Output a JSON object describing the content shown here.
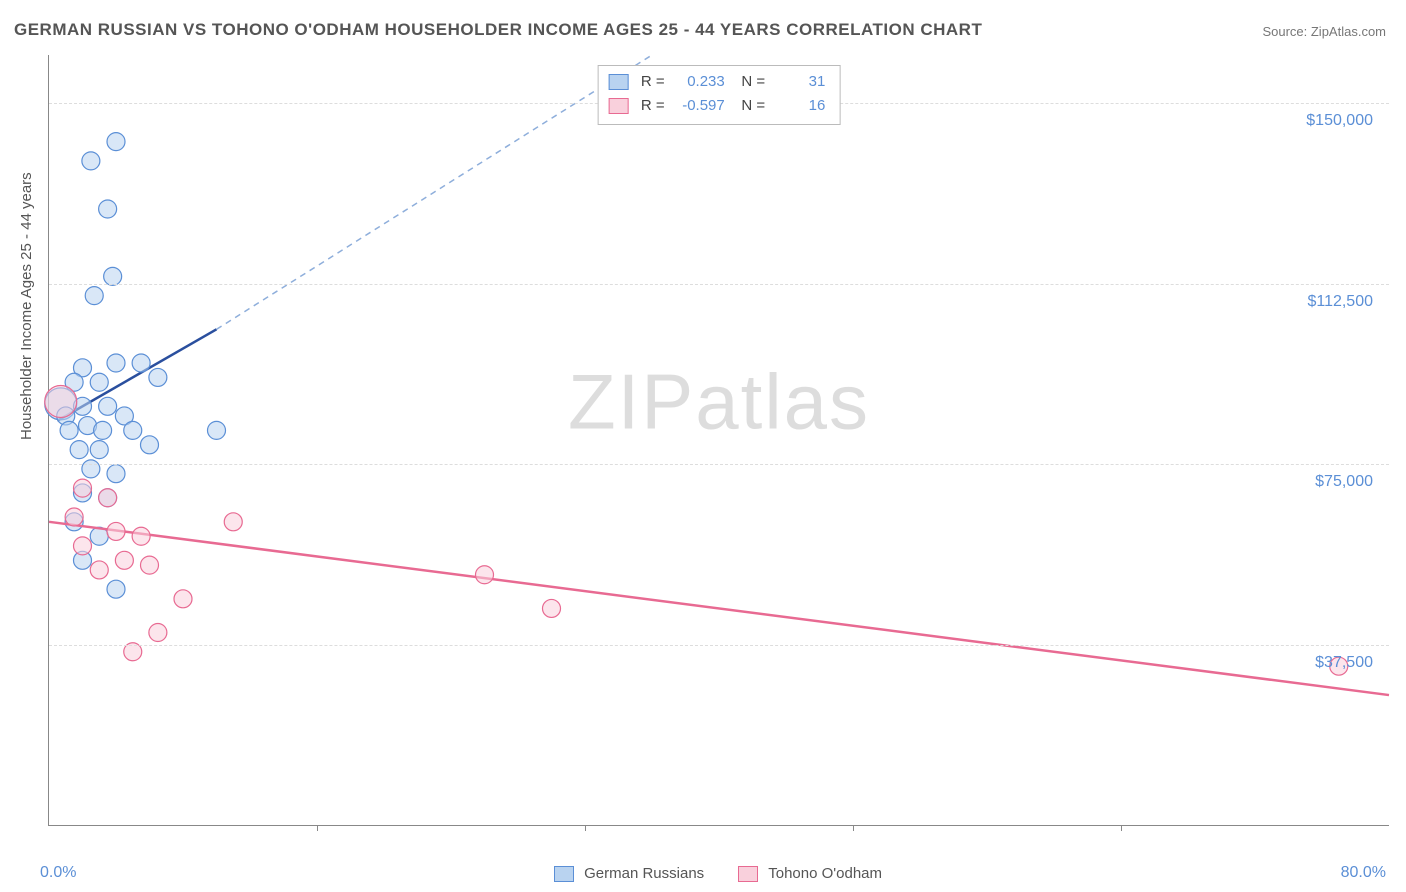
{
  "title": "GERMAN RUSSIAN VS TOHONO O'ODHAM HOUSEHOLDER INCOME AGES 25 - 44 YEARS CORRELATION CHART",
  "source": "Source: ZipAtlas.com",
  "watermark": "ZIPatlas",
  "ylabel": "Householder Income Ages 25 - 44 years",
  "chart": {
    "type": "scatter",
    "background_color": "#ffffff",
    "grid_color": "#dddddd",
    "axis_color": "#888888",
    "xlim": [
      0,
      80
    ],
    "ylim": [
      0,
      160000
    ],
    "x_unit": "%",
    "y_unit": "$",
    "x_tick_labels": {
      "0": "0.0%",
      "80": "80.0%"
    },
    "x_minor_ticks": [
      16,
      32,
      48,
      64
    ],
    "y_gridlines": [
      37500,
      75000,
      112500,
      150000
    ],
    "y_tick_labels": {
      "37500": "$37,500",
      "75000": "$75,000",
      "112500": "$112,500",
      "150000": "$150,000"
    },
    "label_color": "#5b8fd6",
    "label_fontsize": 16,
    "point_radius": 9,
    "point_opacity": 0.55,
    "big_marker_radius": 16,
    "series": [
      {
        "name": "German Russians",
        "color_fill": "#b9d3f0",
        "color_stroke": "#5b8fd6",
        "R": 0.233,
        "N": 31,
        "trend": {
          "solid": {
            "x1": 0.5,
            "y1": 84000,
            "x2": 10,
            "y2": 103000,
            "width": 2.5,
            "color": "#2a4f9e"
          },
          "dashed": {
            "x1": 10,
            "y1": 103000,
            "x2": 36,
            "y2": 160000,
            "width": 1.5,
            "color": "#8eaedb",
            "dash": "6 5"
          }
        },
        "avg_marker": {
          "x": 0.7,
          "y": 87500
        },
        "points": [
          [
            4.0,
            142000
          ],
          [
            2.5,
            138000
          ],
          [
            3.5,
            128000
          ],
          [
            3.8,
            114000
          ],
          [
            2.7,
            110000
          ],
          [
            2.0,
            95000
          ],
          [
            4.0,
            96000
          ],
          [
            5.5,
            96000
          ],
          [
            1.5,
            92000
          ],
          [
            3.0,
            92000
          ],
          [
            6.5,
            93000
          ],
          [
            1.0,
            85000
          ],
          [
            2.0,
            87000
          ],
          [
            3.5,
            87000
          ],
          [
            4.5,
            85000
          ],
          [
            1.2,
            82000
          ],
          [
            2.3,
            83000
          ],
          [
            3.2,
            82000
          ],
          [
            5.0,
            82000
          ],
          [
            10.0,
            82000
          ],
          [
            1.8,
            78000
          ],
          [
            3.0,
            78000
          ],
          [
            6.0,
            79000
          ],
          [
            2.5,
            74000
          ],
          [
            4.0,
            73000
          ],
          [
            2.0,
            69000
          ],
          [
            3.5,
            68000
          ],
          [
            1.5,
            63000
          ],
          [
            3.0,
            60000
          ],
          [
            2.0,
            55000
          ],
          [
            4.0,
            49000
          ]
        ]
      },
      {
        "name": "Tohono O'odham",
        "color_fill": "#f9d0dc",
        "color_stroke": "#e86a92",
        "R": -0.597,
        "N": 16,
        "trend": {
          "solid": {
            "x1": 0,
            "y1": 63000,
            "x2": 80,
            "y2": 27000,
            "width": 2.5,
            "color": "#e86a92"
          }
        },
        "avg_marker": {
          "x": 0.7,
          "y": 88000
        },
        "points": [
          [
            2.0,
            70000
          ],
          [
            3.5,
            68000
          ],
          [
            1.5,
            64000
          ],
          [
            11.0,
            63000
          ],
          [
            4.0,
            61000
          ],
          [
            5.5,
            60000
          ],
          [
            2.0,
            58000
          ],
          [
            4.5,
            55000
          ],
          [
            6.0,
            54000
          ],
          [
            3.0,
            53000
          ],
          [
            26.0,
            52000
          ],
          [
            8.0,
            47000
          ],
          [
            30.0,
            45000
          ],
          [
            6.5,
            40000
          ],
          [
            5.0,
            36000
          ],
          [
            77.0,
            33000
          ]
        ]
      }
    ],
    "legend_bottom": [
      {
        "swatch": "blue",
        "label": "German Russians"
      },
      {
        "swatch": "pink",
        "label": "Tohono O'odham"
      }
    ]
  }
}
